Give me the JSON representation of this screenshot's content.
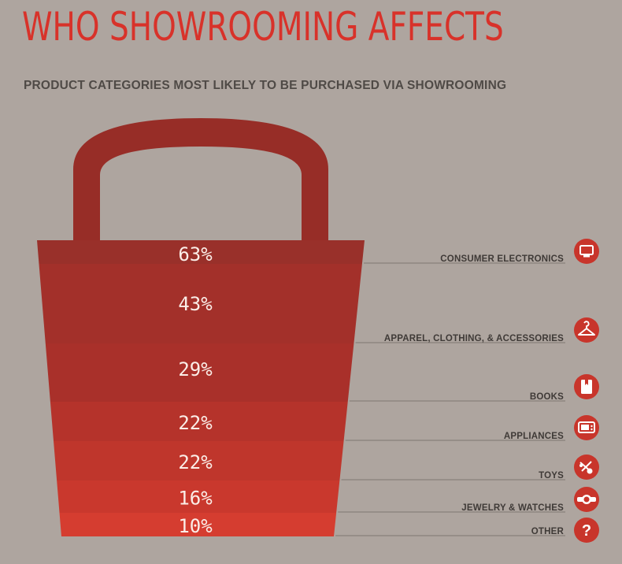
{
  "title": "WHO SHOWROOMING AFFECTS",
  "subtitle": "PRODUCT CATEGORIES MOST LIKELY TO BE PURCHASED VIA SHOWROOMING",
  "chart_data": {
    "type": "bar",
    "categories": [
      "CONSUMER ELECTRONICS",
      "APPAREL, CLOTHING, & ACCESSORIES",
      "BOOKS",
      "APPLIANCES",
      "TOYS",
      "JEWELRY & WATCHES",
      "OTHER"
    ],
    "values": [
      63,
      43,
      29,
      22,
      22,
      16,
      10
    ],
    "value_labels": [
      "63%",
      "43%",
      "29%",
      "22%",
      "22%",
      "16%",
      "10%"
    ],
    "icons": [
      "monitor-icon",
      "hanger-icon",
      "book-icon",
      "microwave-icon",
      "toy-icon",
      "watch-icon",
      "question-icon"
    ],
    "colors": [
      "#99302a",
      "#a3302a",
      "#a9302a",
      "#b5332b",
      "#bf362c",
      "#c9382d",
      "#d53d30"
    ],
    "handle_color": "#972d27",
    "icon_color": "#c8352b"
  }
}
